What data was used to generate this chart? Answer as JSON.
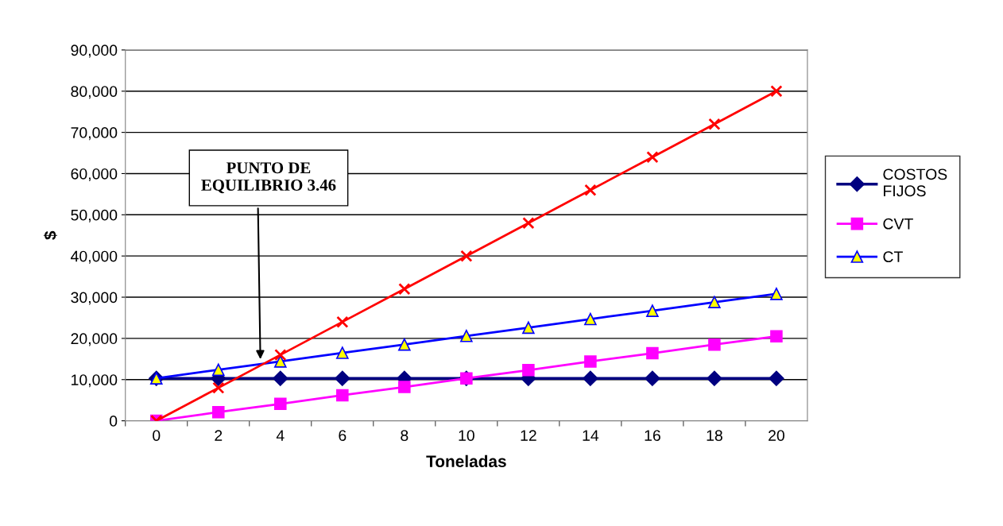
{
  "chart_data": {
    "type": "line",
    "xlabel": "Toneladas",
    "ylabel": "$",
    "categories": [
      "0",
      "2",
      "4",
      "6",
      "8",
      "10",
      "12",
      "14",
      "16",
      "18",
      "20"
    ],
    "series": [
      {
        "name": "COSTOS\nFIJOS",
        "color": "#000080",
        "marker": "diamond",
        "values": [
          10300,
          10300,
          10300,
          10300,
          10300,
          10300,
          10300,
          10300,
          10300,
          10300,
          10300
        ]
      },
      {
        "name": "CVT",
        "color": "#ff00ff",
        "marker": "square",
        "values": [
          0,
          2100,
          4100,
          6200,
          8200,
          10300,
          12300,
          14400,
          16400,
          18500,
          20500
        ]
      },
      {
        "name": "CT",
        "color": "#0000ff",
        "marker": "triangle",
        "values": [
          10300,
          12400,
          14400,
          16500,
          18500,
          20600,
          22600,
          24700,
          26700,
          28800,
          30800
        ]
      },
      {
        "color": "#ff0000",
        "marker": "cross",
        "values": [
          0,
          8000,
          16000,
          24000,
          32000,
          40000,
          48000,
          56000,
          64000,
          72000,
          80000
        ]
      }
    ],
    "ylim": [
      0,
      90000
    ],
    "yticks": [
      {
        "value": 0,
        "label": "0"
      },
      {
        "value": 10000,
        "label": "10,000"
      },
      {
        "value": 20000,
        "label": "20,000"
      },
      {
        "value": 30000,
        "label": "30,000"
      },
      {
        "value": 40000,
        "label": "40,000"
      },
      {
        "value": 50000,
        "label": "50,000"
      },
      {
        "value": 60000,
        "label": "60,000"
      },
      {
        "value": 70000,
        "label": "70,000"
      },
      {
        "value": 80000,
        "label": "80,000"
      },
      {
        "value": 90000,
        "label": "90,000"
      }
    ],
    "grid": "y",
    "legend": "right",
    "annotations": [
      "PUNTO DE\nEQUILIBRIO 3.46"
    ]
  }
}
